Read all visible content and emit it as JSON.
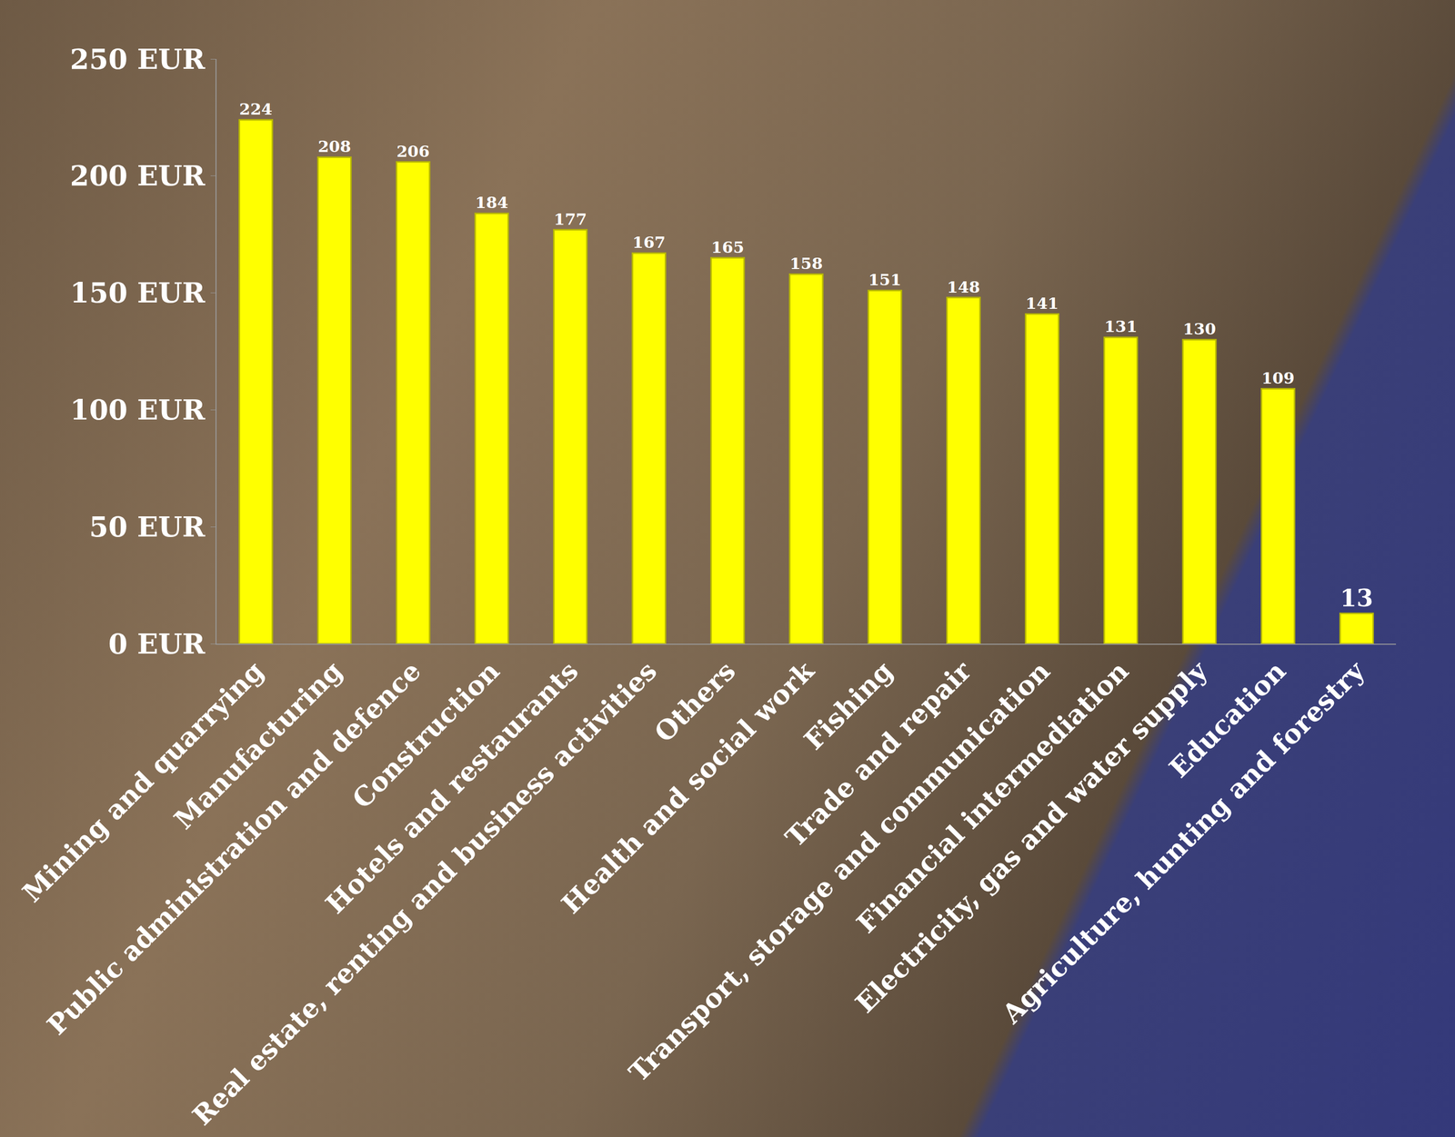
{
  "chart_data": {
    "type": "bar",
    "categories": [
      "Mining and quarrying",
      "Manufacturing",
      "Public administration and defence",
      "Construction",
      "Hotels and restaurants",
      "Real estate, renting and business activities",
      "Others",
      "Health and social work",
      "Fishing",
      "Trade and repair",
      "Transport, storage and communication",
      "Financial intermediation",
      "Electricity, gas and water supply",
      "Education",
      "Agriculture, hunting and forestry"
    ],
    "values": [
      224,
      208,
      206,
      184,
      177,
      167,
      165,
      158,
      151,
      148,
      141,
      131,
      130,
      109,
      13
    ],
    "color": "#ffff00",
    "ylim": [
      0,
      250
    ],
    "yticks": [
      {
        "value": 0,
        "label": "0 EUR"
      },
      {
        "value": 50,
        "label": "50 EUR"
      },
      {
        "value": 100,
        "label": "100 EUR"
      },
      {
        "value": 150,
        "label": "150 EUR"
      },
      {
        "value": 200,
        "label": "200 EUR"
      },
      {
        "value": 250,
        "label": "250 EUR"
      }
    ],
    "grid": false,
    "data_labels": true
  }
}
